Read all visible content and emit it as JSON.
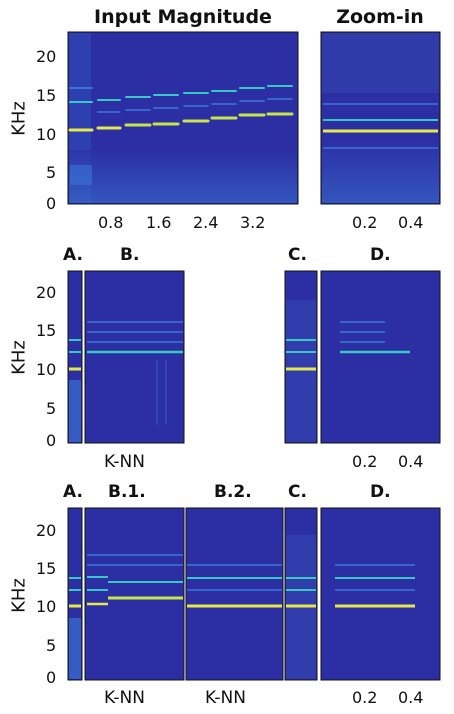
{
  "top_row": {
    "title_left": "Input Magnitude",
    "title_right": "Zoom-in",
    "ylabel": "KHz",
    "yticks": [
      "20",
      "15",
      "10",
      "5",
      "0"
    ],
    "xticks_left": [
      "0.8",
      "1.6",
      "2.4",
      "3.2"
    ],
    "xticks_right": [
      "0.2",
      "0.4"
    ]
  },
  "middle_row": {
    "labels": {
      "a": "A.",
      "b": "B.",
      "c": "C.",
      "d": "D."
    },
    "ylabel": "KHz",
    "yticks": [
      "20",
      "15",
      "10",
      "5",
      "0"
    ],
    "xlabel_b": "K-NN",
    "xticks_d": [
      "0.2",
      "0.4"
    ]
  },
  "bottom_row": {
    "labels": {
      "a": "A.",
      "b1": "B.1.",
      "b2": "B.2.",
      "c": "C.",
      "d": "D."
    },
    "ylabel": "KHz",
    "yticks": [
      "20",
      "15",
      "10",
      "5",
      "0"
    ],
    "xlabel_b1": "K-NN",
    "xlabel_b2": "K-NN",
    "xticks_d": [
      "0.2",
      "0.4"
    ]
  },
  "colors": {
    "background": "#2b2fa3",
    "band_light": "#3a78d8",
    "band_bright": "#e7e84a",
    "band_cyan": "#39c9c3"
  }
}
